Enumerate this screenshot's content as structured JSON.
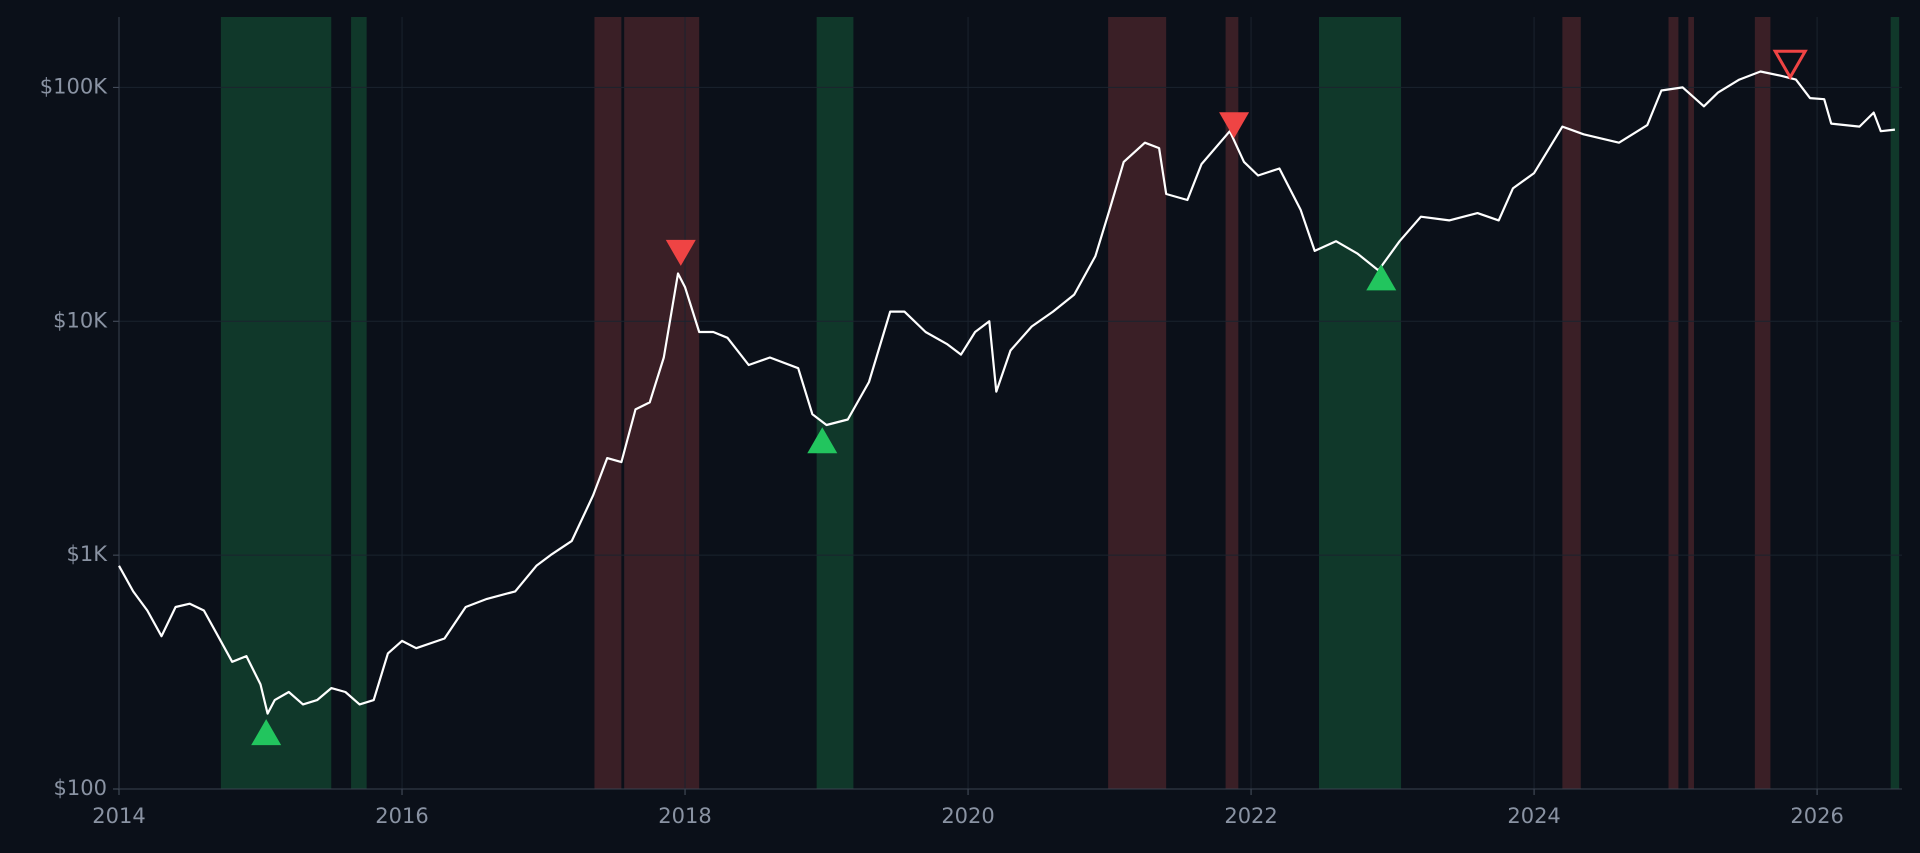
{
  "chart_data": {
    "type": "line",
    "log_y": true,
    "grid": true,
    "background": "#0b1019",
    "xlim": [
      2014,
      2026.6
    ],
    "xticks": [
      2014,
      2016,
      2018,
      2020,
      2022,
      2024,
      2026
    ],
    "ylim": [
      100,
      200000
    ],
    "yticks": [
      {
        "value": 100,
        "label": "$100"
      },
      {
        "value": 1000,
        "label": "$1K"
      },
      {
        "value": 10000,
        "label": "$10K"
      },
      {
        "value": 100000,
        "label": "$100K"
      }
    ],
    "buy_zones": {
      "color": "#10382a",
      "ranges": [
        [
          2014.72,
          2015.5
        ],
        [
          2015.64,
          2015.75
        ],
        [
          2018.93,
          2019.19
        ],
        [
          2022.48,
          2023.06
        ],
        [
          2026.52,
          2026.58
        ]
      ]
    },
    "sell_zones": {
      "color": "#3a1f26",
      "ranges": [
        [
          2017.36,
          2017.55
        ],
        [
          2017.57,
          2018.1
        ],
        [
          2020.99,
          2021.4
        ],
        [
          2021.82,
          2021.91
        ],
        [
          2024.2,
          2024.33
        ],
        [
          2024.95,
          2025.02
        ],
        [
          2025.09,
          2025.13
        ],
        [
          2025.56,
          2025.67
        ]
      ]
    },
    "series": [
      {
        "color": "#ffffff",
        "x": [
          2014.0,
          2014.1,
          2014.2,
          2014.3,
          2014.4,
          2014.5,
          2014.6,
          2014.7,
          2014.8,
          2014.9,
          2015.0,
          2015.05,
          2015.1,
          2015.2,
          2015.3,
          2015.4,
          2015.5,
          2015.6,
          2015.7,
          2015.8,
          2015.9,
          2016.0,
          2016.1,
          2016.3,
          2016.45,
          2016.6,
          2016.8,
          2016.95,
          2017.05,
          2017.2,
          2017.35,
          2017.45,
          2017.55,
          2017.65,
          2017.75,
          2017.85,
          2017.95,
          2018.0,
          2018.1,
          2018.2,
          2018.3,
          2018.45,
          2018.6,
          2018.8,
          2018.9,
          2019.0,
          2019.15,
          2019.3,
          2019.45,
          2019.55,
          2019.7,
          2019.85,
          2019.95,
          2020.05,
          2020.15,
          2020.2,
          2020.3,
          2020.45,
          2020.6,
          2020.75,
          2020.9,
          2021.0,
          2021.1,
          2021.25,
          2021.35,
          2021.4,
          2021.55,
          2021.65,
          2021.85,
          2021.95,
          2022.05,
          2022.2,
          2022.35,
          2022.45,
          2022.6,
          2022.75,
          2022.9,
          2023.05,
          2023.2,
          2023.4,
          2023.6,
          2023.75,
          2023.85,
          2024.0,
          2024.2,
          2024.35,
          2024.6,
          2024.8,
          2024.9,
          2025.05,
          2025.2,
          2025.3,
          2025.45,
          2025.6,
          2025.75,
          2025.85,
          2025.95,
          2026.05,
          2026.1,
          2026.3,
          2026.4,
          2026.45,
          2026.55
        ],
        "values": [
          900,
          700,
          580,
          450,
          600,
          620,
          580,
          450,
          350,
          370,
          280,
          210,
          240,
          260,
          230,
          240,
          270,
          260,
          230,
          240,
          380,
          430,
          400,
          440,
          600,
          650,
          700,
          900,
          1000,
          1150,
          1800,
          2600,
          2500,
          4200,
          4500,
          7000,
          16000,
          14000,
          9000,
          9000,
          8500,
          6500,
          7000,
          6300,
          4000,
          3600,
          3800,
          5500,
          11000,
          11000,
          9000,
          8000,
          7200,
          9000,
          10000,
          5000,
          7500,
          9500,
          11000,
          13000,
          19000,
          30000,
          48000,
          58000,
          55000,
          35000,
          33000,
          47000,
          65000,
          48000,
          42000,
          45000,
          30000,
          20000,
          22000,
          19500,
          16500,
          22000,
          28000,
          27000,
          29000,
          27000,
          37000,
          43000,
          68000,
          63000,
          58000,
          69000,
          97000,
          100000,
          83000,
          95000,
          108000,
          117000,
          112000,
          108000,
          90000,
          89000,
          70000,
          68000,
          78000,
          65000,
          66000
        ]
      }
    ],
    "buy_signals": {
      "color": "#22c55e",
      "x": [
        2015.04,
        2018.97,
        2022.92
      ],
      "values": [
        175,
        3100,
        15400
      ]
    },
    "sell_signals": {
      "color": "#ef4444",
      "x": [
        2017.97,
        2021.88
      ],
      "values": [
        19600,
        68900
      ]
    },
    "open_sell_signals": {
      "color": "#ef4444",
      "x": [
        2025.81
      ],
      "values": [
        125600
      ]
    }
  }
}
